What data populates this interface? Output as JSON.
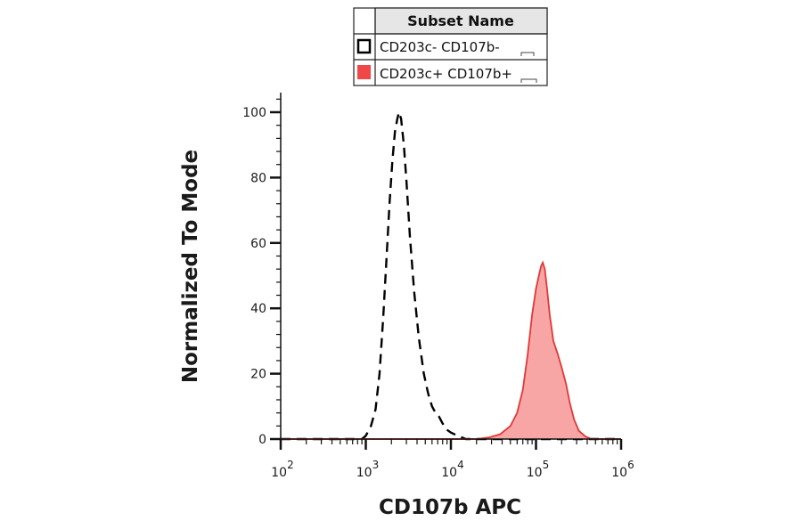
{
  "chart_data": {
    "type": "area",
    "xlabel": "CD107b APC",
    "ylabel": "Normalized To Mode",
    "x_scale": "log",
    "xlim": [
      100,
      1000000
    ],
    "ylim": [
      0,
      100
    ],
    "x_ticks": [
      {
        "value": 100,
        "base": "10",
        "exp": "2"
      },
      {
        "value": 1000,
        "base": "10",
        "exp": "3"
      },
      {
        "value": 10000,
        "base": "10",
        "exp": "4"
      },
      {
        "value": 100000,
        "base": "10",
        "exp": "5"
      },
      {
        "value": 1000000,
        "base": "10",
        "exp": "6"
      }
    ],
    "y_ticks": [
      0,
      20,
      40,
      60,
      80,
      100
    ],
    "grid": false,
    "legend": {
      "header": "Subset Name",
      "placement": "top-center",
      "entries": [
        {
          "label": "CD203c- CD107b-",
          "style": "dashed-outline",
          "color": "#000000"
        },
        {
          "label": "CD203c+ CD107b+",
          "style": "filled",
          "color": "#f04848"
        }
      ]
    },
    "series": [
      {
        "name": "CD203c- CD107b-",
        "style": "dashed",
        "color": "#000000",
        "points": [
          [
            100,
            0
          ],
          [
            300,
            0
          ],
          [
            900,
            0
          ],
          [
            1000,
            1
          ],
          [
            1150,
            4
          ],
          [
            1300,
            9
          ],
          [
            1450,
            20
          ],
          [
            1600,
            37
          ],
          [
            1750,
            55
          ],
          [
            1900,
            72
          ],
          [
            2050,
            85
          ],
          [
            2200,
            94
          ],
          [
            2350,
            98
          ],
          [
            2450,
            100
          ],
          [
            2600,
            98
          ],
          [
            2800,
            90
          ],
          [
            3000,
            79
          ],
          [
            3300,
            62
          ],
          [
            3700,
            45
          ],
          [
            4200,
            31
          ],
          [
            4800,
            20
          ],
          [
            5400,
            14
          ],
          [
            6000,
            10
          ],
          [
            6600,
            8
          ],
          [
            7200,
            7
          ],
          [
            7900,
            5
          ],
          [
            8800,
            3
          ],
          [
            10000,
            2
          ],
          [
            12000,
            1
          ],
          [
            15000,
            0
          ],
          [
            20000,
            0
          ],
          [
            1000000,
            0
          ]
        ]
      },
      {
        "name": "CD203c+ CD107b+",
        "style": "filled",
        "color": "#e03838",
        "fill": "#f7a5a5",
        "points": [
          [
            100,
            0
          ],
          [
            20000,
            0
          ],
          [
            28000,
            0.5
          ],
          [
            38000,
            1.5
          ],
          [
            50000,
            4
          ],
          [
            60000,
            8
          ],
          [
            70000,
            15
          ],
          [
            80000,
            26
          ],
          [
            90000,
            38
          ],
          [
            100000,
            46
          ],
          [
            108000,
            50
          ],
          [
            115000,
            53
          ],
          [
            120000,
            54
          ],
          [
            127000,
            52
          ],
          [
            135000,
            46
          ],
          [
            145000,
            38
          ],
          [
            160000,
            30
          ],
          [
            180000,
            26
          ],
          [
            200000,
            22
          ],
          [
            225000,
            17
          ],
          [
            250000,
            11
          ],
          [
            280000,
            6
          ],
          [
            320000,
            2.5
          ],
          [
            380000,
            0.8
          ],
          [
            450000,
            0
          ],
          [
            1000000,
            0
          ]
        ]
      }
    ]
  }
}
